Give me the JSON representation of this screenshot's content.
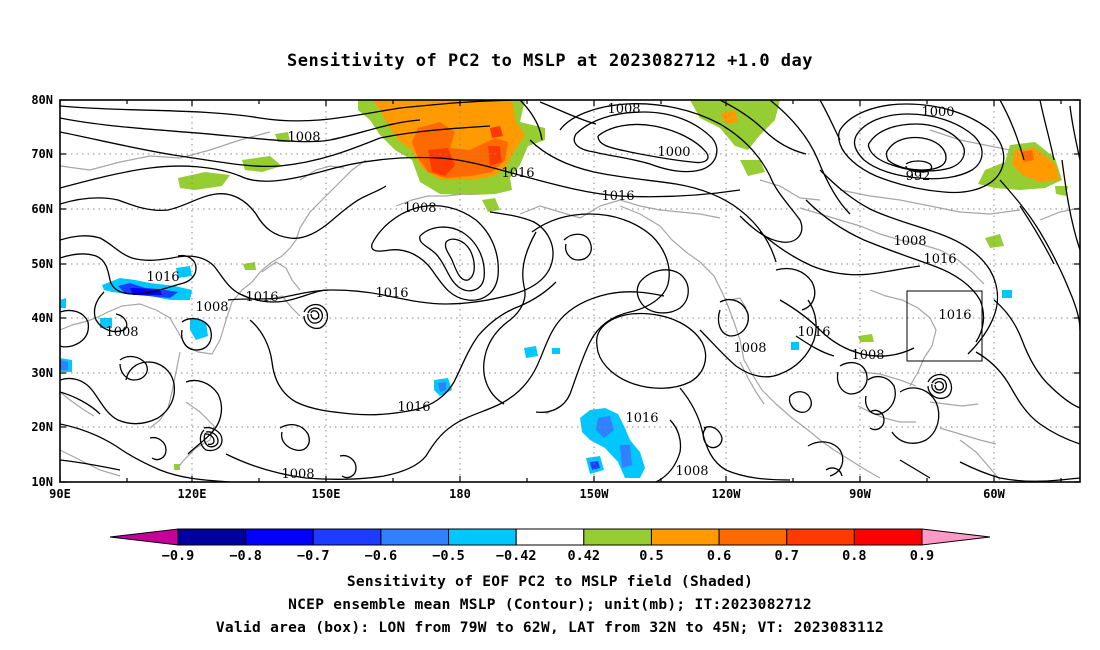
{
  "title": "Sensitivity of PC2 to MSLP at 2023082712 +1.0 day",
  "map": {
    "lat_labels": [
      "80N",
      "70N",
      "60N",
      "50N",
      "40N",
      "30N",
      "20N",
      "10N"
    ],
    "lon_labels": [
      "90E",
      "120E",
      "150E",
      "180",
      "150W",
      "120W",
      "90W",
      "60W"
    ],
    "valid_box": {
      "lon_from": "79W",
      "lon_to": "62W",
      "lat_from": "32N",
      "lat_to": "45N"
    },
    "contour_labels": [
      {
        "text": "1008",
        "id": "c1"
      },
      {
        "text": "1016",
        "id": "c2"
      },
      {
        "text": "1008",
        "id": "c3"
      },
      {
        "text": "1016",
        "id": "c4"
      },
      {
        "text": "1008",
        "id": "c5"
      },
      {
        "text": "1008",
        "id": "c6"
      },
      {
        "text": "1016",
        "id": "c7"
      },
      {
        "text": "1016",
        "id": "c8"
      },
      {
        "text": "1008",
        "id": "c9"
      },
      {
        "text": "1008",
        "id": "c10"
      },
      {
        "text": "1000",
        "id": "c11"
      },
      {
        "text": "1016",
        "id": "c12"
      },
      {
        "text": "1016",
        "id": "c13"
      },
      {
        "text": "1016",
        "id": "c14"
      },
      {
        "text": "1008",
        "id": "c15"
      },
      {
        "text": "1000",
        "id": "c16"
      },
      {
        "text": "992",
        "id": "c17"
      },
      {
        "text": "1008",
        "id": "c18"
      },
      {
        "text": "1016",
        "id": "c19"
      },
      {
        "text": "1016",
        "id": "c20"
      },
      {
        "text": "1016",
        "id": "c21"
      },
      {
        "text": "1008",
        "id": "c22"
      },
      {
        "text": "1008",
        "id": "c23"
      },
      {
        "text": "1016",
        "id": "c24"
      },
      {
        "text": "1008",
        "id": "c25"
      }
    ]
  },
  "colorbar": {
    "labels": [
      "-0.9",
      "-0.8",
      "-0.7",
      "-0.6",
      "-0.5",
      "-0.42",
      "0.42",
      "0.5",
      "0.6",
      "0.7",
      "0.8",
      "0.9"
    ],
    "colors": [
      "#c40098",
      "#00009e",
      "#0000ff",
      "#1c3cff",
      "#3080ff",
      "#00c8ff",
      "#ffffff",
      "#96cd32",
      "#ff9a00",
      "#ff6a00",
      "#ff3a00",
      "#ff0000",
      "#ff99c8"
    ]
  },
  "caption": {
    "line1": "Sensitivity of EOF PC2 to MSLP field (Shaded)",
    "line2": "NCEP ensemble mean MSLP (Contour); unit(mb); IT:2023082712",
    "line3": "Valid area (box): LON from 79W to 62W, LAT from 32N to 45N; VT: 2023083112"
  }
}
